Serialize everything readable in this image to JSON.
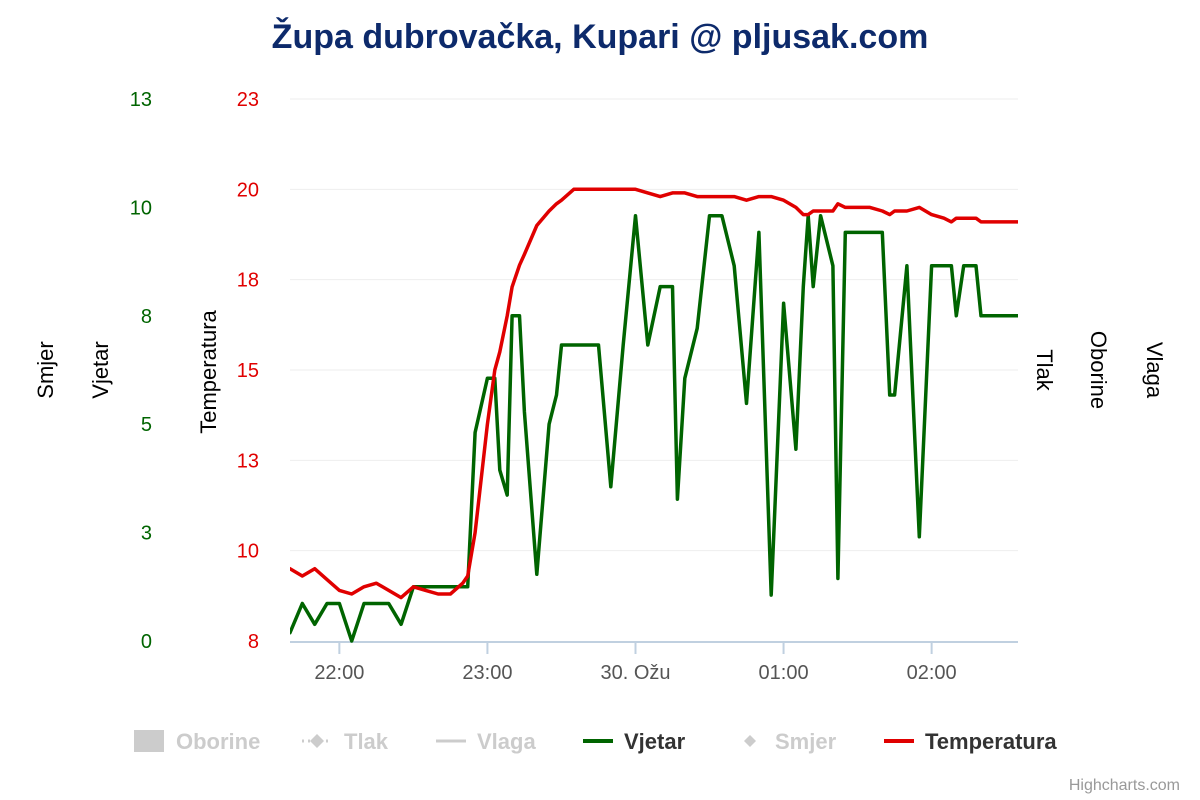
{
  "chart_data": {
    "type": "line",
    "title": "Župa dubrovačka, Kupari @ pljusak.com",
    "colors": {
      "wind": "#006400",
      "temperature": "#e00000",
      "pressure_title": "#666666",
      "rain_title": "#9a9ad8",
      "humidity_title": "#6a0dad",
      "hidden_legend": "#cccccc",
      "grid": "#eeeeee",
      "x_axis": "#c0d0e0",
      "title": "#0d2a6b"
    },
    "x_axis": {
      "unit": "minutes since 21:40",
      "range": [
        0,
        295
      ],
      "ticks": [
        {
          "label": "22:00",
          "x": 20
        },
        {
          "label": "23:00",
          "x": 80
        },
        {
          "label": "30. Ožu",
          "x": 140
        },
        {
          "label": "01:00",
          "x": 200
        },
        {
          "label": "02:00",
          "x": 260
        }
      ]
    },
    "y_axes": {
      "wind": {
        "title_left": "Smjer",
        "title_right": "Vjetar",
        "range": [
          0,
          13
        ],
        "tick_labels": [
          "13",
          "10",
          "8",
          "5",
          "3",
          "0"
        ],
        "tick_values": [
          13,
          10.4,
          7.8,
          5.2,
          2.6,
          0
        ]
      },
      "temperature": {
        "title": "Temperatura",
        "range": [
          8,
          23
        ],
        "tick_labels": [
          "23",
          "20",
          "18",
          "15",
          "13",
          "10",
          "8"
        ],
        "tick_values": [
          23,
          20.5,
          18,
          15.5,
          13,
          10.5,
          8
        ]
      },
      "right_titles": [
        "Tlak",
        "Oborine",
        "Vlaga"
      ]
    },
    "series": [
      {
        "name": "Vjetar",
        "axis": "wind",
        "x": [
          0,
          5,
          10,
          15,
          20,
          25,
          30,
          35,
          40,
          45,
          50,
          55,
          60,
          65,
          70,
          72,
          75,
          80,
          83,
          85,
          88,
          90,
          93,
          95,
          100,
          105,
          108,
          110,
          115,
          120,
          125,
          130,
          135,
          140,
          145,
          150,
          155,
          157,
          160,
          165,
          170,
          175,
          180,
          185,
          190,
          195,
          200,
          205,
          208,
          210,
          212,
          215,
          220,
          222,
          225,
          227,
          230,
          235,
          240,
          243,
          245,
          250,
          255,
          260,
          265,
          268,
          270,
          273,
          275,
          278,
          280,
          285,
          287,
          290,
          295
        ],
        "values": [
          0.2,
          0.9,
          0.4,
          0.9,
          0.9,
          0,
          0.9,
          0.9,
          0.9,
          0.4,
          1.3,
          1.3,
          1.3,
          1.3,
          1.3,
          1.3,
          5,
          6.3,
          6.3,
          4.1,
          3.5,
          7.8,
          7.8,
          5.5,
          1.6,
          5.2,
          5.9,
          7.1,
          7.1,
          7.1,
          7.1,
          3.7,
          7.1,
          10.2,
          7.1,
          8.5,
          8.5,
          3.4,
          6.3,
          7.5,
          10.2,
          10.2,
          9.0,
          5.7,
          9.8,
          1.1,
          8.1,
          4.6,
          8.5,
          10.2,
          8.5,
          10.2,
          9.0,
          1.5,
          9.8,
          9.8,
          9.8,
          9.8,
          9.8,
          5.9,
          5.9,
          9.0,
          2.5,
          9.0,
          9.0,
          9.0,
          7.8,
          9.0,
          9.0,
          9.0,
          7.8,
          7.8,
          7.8,
          7.8,
          7.8
        ]
      },
      {
        "name": "Temperatura",
        "axis": "temperature",
        "x": [
          0,
          5,
          10,
          15,
          20,
          25,
          30,
          35,
          40,
          45,
          50,
          55,
          60,
          65,
          70,
          72,
          75,
          80,
          83,
          85,
          88,
          90,
          93,
          95,
          100,
          105,
          108,
          110,
          115,
          120,
          125,
          130,
          135,
          140,
          145,
          150,
          155,
          157,
          160,
          165,
          170,
          175,
          180,
          185,
          190,
          195,
          200,
          205,
          208,
          210,
          212,
          215,
          220,
          222,
          225,
          227,
          230,
          235,
          240,
          243,
          245,
          250,
          255,
          260,
          265,
          268,
          270,
          273,
          275,
          278,
          280,
          285,
          287,
          290,
          295
        ],
        "values": [
          10.0,
          9.8,
          10.0,
          9.7,
          9.4,
          9.3,
          9.5,
          9.6,
          9.4,
          9.2,
          9.5,
          9.4,
          9.3,
          9.3,
          9.6,
          9.8,
          11.0,
          14.0,
          15.5,
          16.0,
          17.0,
          17.8,
          18.4,
          18.7,
          19.5,
          19.9,
          20.1,
          20.2,
          20.5,
          20.5,
          20.5,
          20.5,
          20.5,
          20.5,
          20.4,
          20.3,
          20.4,
          20.4,
          20.4,
          20.3,
          20.3,
          20.3,
          20.3,
          20.2,
          20.3,
          20.3,
          20.2,
          20.0,
          19.8,
          19.8,
          19.9,
          19.9,
          19.9,
          20.1,
          20.0,
          20.0,
          20.0,
          20.0,
          19.9,
          19.8,
          19.9,
          19.9,
          20.0,
          19.8,
          19.7,
          19.6,
          19.7,
          19.7,
          19.7,
          19.7,
          19.6,
          19.6,
          19.6,
          19.6,
          19.6
        ]
      }
    ],
    "legend": [
      {
        "name": "Oborine",
        "symbol": "box",
        "active": false
      },
      {
        "name": "Tlak",
        "symbol": "dash-diamond",
        "active": false
      },
      {
        "name": "Vlaga",
        "symbol": "line",
        "active": false
      },
      {
        "name": "Vjetar",
        "symbol": "line",
        "active": true,
        "series": "wind"
      },
      {
        "name": "Smjer",
        "symbol": "diamond",
        "active": false
      },
      {
        "name": "Temperatura",
        "symbol": "line",
        "active": true,
        "series": "temperature"
      }
    ],
    "legend_position": "bottom-center",
    "grid": true,
    "credit": "Highcharts.com"
  }
}
